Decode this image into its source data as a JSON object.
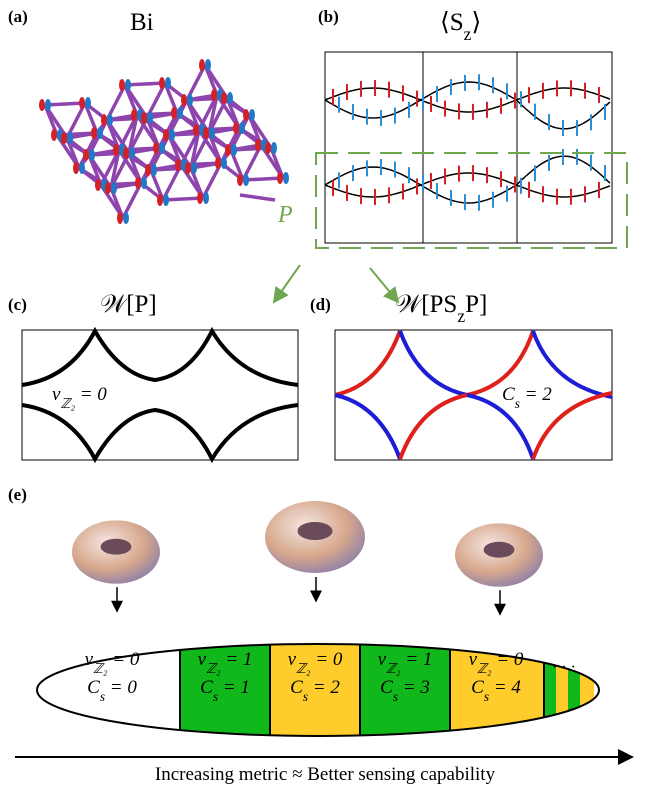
{
  "panels": {
    "a": {
      "label": "(a)",
      "title": "Bi",
      "marker": "P"
    },
    "b": {
      "label": "(b)",
      "title": [
        "⟨S",
        "z",
        "⟩"
      ]
    },
    "c": {
      "label": "(c)",
      "title": [
        "𝒲[P]"
      ],
      "annotation": [
        "ν",
        "ℤ₂",
        " = 0"
      ]
    },
    "d": {
      "label": "(d)",
      "title": [
        "𝒲[PS",
        "z",
        "P]"
      ],
      "annotation": [
        "C",
        "s",
        " = 2"
      ]
    },
    "e": {
      "label": "(e)",
      "cells": [
        {
          "nu": [
            "ν",
            "ℤ₂",
            " = 0"
          ],
          "cs": [
            "C",
            "s",
            " = 0"
          ]
        },
        {
          "nu": [
            "ν",
            "ℤ₂",
            " = 1"
          ],
          "cs": [
            "C",
            "s",
            " = 1"
          ]
        },
        {
          "nu": [
            "ν",
            "ℤ₂",
            " = 0"
          ],
          "cs": [
            "C",
            "s",
            " = 2"
          ]
        },
        {
          "nu": [
            "ν",
            "ℤ₂",
            " = 1"
          ],
          "cs": [
            "C",
            "s",
            " = 3"
          ]
        },
        {
          "nu": [
            "ν",
            "ℤ₂",
            " = 0"
          ],
          "cs": [
            "C",
            "s",
            " = 4"
          ]
        }
      ],
      "ellipsis": "· · ·",
      "axis_label": "Increasing metric ≈ Better sensing capability"
    }
  }
}
